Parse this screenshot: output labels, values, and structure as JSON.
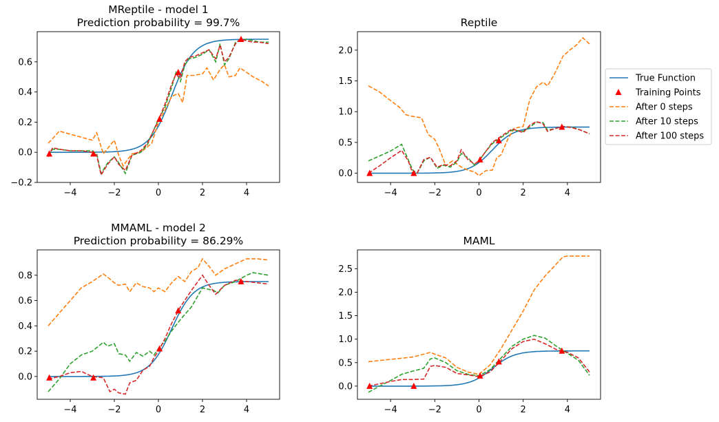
{
  "colors": {
    "true_function": "#1f77b4",
    "training_points": "#ff0000",
    "after_0": "#ff7f0e",
    "after_10": "#2ca02c",
    "after_100": "#d62728"
  },
  "legend": {
    "entries": [
      "True Function",
      "Training Points",
      "After 0 steps",
      "After 10 steps",
      "After 100 steps"
    ],
    "placement": "right of top-right subplot"
  },
  "chart_data": [
    {
      "type": "line",
      "title": "MReptile - model 1\nPrediction probability = 99.7%",
      "xlabel": "",
      "ylabel": "",
      "xlim": [
        -5.5,
        5.5
      ],
      "ylim": [
        -0.2,
        0.8
      ],
      "xticks": [
        -4,
        -2,
        0,
        2,
        4
      ],
      "xtick_labels": [
        "−4",
        "−2",
        "0",
        "2",
        "4"
      ],
      "yticks": [
        -0.2,
        0.0,
        0.2,
        0.4,
        0.6
      ],
      "ytick_labels": [
        "−0.2",
        "0.0",
        "0.2",
        "0.4",
        "0.6"
      ],
      "true_function": {
        "amplitude": 0.75,
        "steepness": 2.0,
        "center": 0.6
      },
      "training_points": {
        "x": [
          -4.95,
          -2.95,
          0.05,
          0.9,
          3.75
        ],
        "y": [
          -0.01,
          -0.01,
          0.22,
          0.53,
          0.75
        ]
      },
      "series": [
        {
          "name": "After 0 steps",
          "x": [
            -5,
            -4.8,
            -4.5,
            -4,
            -3.5,
            -3,
            -2.8,
            -2.5,
            -2,
            -1.8,
            -1.6,
            -1.2,
            -0.8,
            -0.3,
            0,
            0.3,
            0.6,
            0.9,
            1.1,
            1.3,
            1.6,
            2,
            2.2,
            2.5,
            2.8,
            3,
            3.2,
            3.5,
            3.7,
            4,
            4.3,
            4.7,
            5
          ],
          "y": [
            0.06,
            0.09,
            0.14,
            0.12,
            0.1,
            0.08,
            0.13,
            -0.01,
            0.08,
            -0.02,
            -0.09,
            -0.01,
            0.0,
            0.06,
            0.2,
            0.28,
            0.37,
            0.39,
            0.33,
            0.51,
            0.51,
            0.52,
            0.56,
            0.48,
            0.55,
            0.58,
            0.5,
            0.51,
            0.56,
            0.53,
            0.5,
            0.47,
            0.44
          ]
        },
        {
          "name": "After 10 steps",
          "x": [
            -5,
            -4.8,
            -4.5,
            -4,
            -3.5,
            -3,
            -2.8,
            -2.6,
            -2.3,
            -2,
            -1.8,
            -1.5,
            -1.2,
            -0.8,
            -0.5,
            0,
            0.3,
            0.6,
            0.8,
            1,
            1.2,
            1.4,
            1.7,
            2,
            2.3,
            2.6,
            2.8,
            3,
            3.2,
            3.5,
            3.7,
            4,
            4.3,
            4.6,
            5
          ],
          "y": [
            -0.02,
            0.02,
            0.02,
            0.01,
            0.01,
            0.01,
            -0.01,
            -0.14,
            -0.07,
            -0.03,
            -0.07,
            -0.14,
            -0.02,
            0.0,
            0.05,
            0.22,
            0.3,
            0.43,
            0.53,
            0.47,
            0.58,
            0.62,
            0.63,
            0.65,
            0.68,
            0.6,
            0.72,
            0.58,
            0.62,
            0.73,
            0.74,
            0.75,
            0.74,
            0.73,
            0.73
          ]
        },
        {
          "name": "After 100 steps",
          "x": [
            -5,
            -4.8,
            -4.5,
            -4,
            -3.5,
            -3,
            -2.8,
            -2.6,
            -2.3,
            -2,
            -1.8,
            -1.5,
            -1.2,
            -0.8,
            -0.5,
            0,
            0.3,
            0.6,
            0.8,
            1,
            1.2,
            1.4,
            1.7,
            2,
            2.3,
            2.6,
            2.8,
            3,
            3.2,
            3.5,
            3.7,
            4,
            4.3,
            4.6,
            5
          ],
          "y": [
            -0.03,
            0.03,
            0.02,
            0.01,
            0.01,
            0.0,
            -0.02,
            -0.15,
            -0.08,
            -0.03,
            -0.08,
            -0.12,
            -0.02,
            0.01,
            0.06,
            0.21,
            0.32,
            0.45,
            0.52,
            0.49,
            0.6,
            0.63,
            0.64,
            0.66,
            0.68,
            0.62,
            0.71,
            0.6,
            0.63,
            0.72,
            0.75,
            0.74,
            0.73,
            0.73,
            0.72
          ]
        }
      ]
    },
    {
      "type": "line",
      "title": "Reptile",
      "xlabel": "",
      "ylabel": "",
      "xlim": [
        -5.5,
        5.5
      ],
      "ylim": [
        -0.15,
        2.3
      ],
      "xticks": [
        -4,
        -2,
        0,
        2,
        4
      ],
      "xtick_labels": [
        "−4",
        "−2",
        "0",
        "2",
        "4"
      ],
      "yticks": [
        0,
        0.5,
        1.0,
        1.5,
        2.0
      ],
      "ytick_labels": [
        "0.0",
        "0.5",
        "1.0",
        "1.5",
        "2.0"
      ],
      "true_function": {
        "amplitude": 0.75,
        "steepness": 2.0,
        "center": 0.6
      },
      "training_points": {
        "x": [
          -4.95,
          -2.95,
          0.05,
          0.9,
          3.75
        ],
        "y": [
          0.0,
          0.0,
          0.22,
          0.53,
          0.75
        ]
      },
      "series": [
        {
          "name": "After 0 steps",
          "x": [
            -5,
            -4.5,
            -4,
            -3.6,
            -3.3,
            -3.1,
            -2.6,
            -2.3,
            -2,
            -1.8,
            -1.5,
            -1.2,
            -0.8,
            -0.5,
            -0.2,
            0,
            0.3,
            0.6,
            0.8,
            1,
            1.3,
            1.6,
            2,
            2.3,
            2.6,
            2.9,
            3.1,
            3.4,
            3.8,
            4.1,
            4.4,
            4.7,
            5
          ],
          "y": [
            1.42,
            1.32,
            1.18,
            1.07,
            0.95,
            0.93,
            0.9,
            0.63,
            0.55,
            0.4,
            0.12,
            0.2,
            0.1,
            0.05,
            0.02,
            -0.04,
            0.04,
            0.05,
            0.25,
            0.3,
            0.55,
            0.73,
            0.76,
            1.2,
            1.4,
            1.48,
            1.42,
            1.6,
            1.9,
            2.0,
            2.08,
            2.2,
            2.1
          ]
        },
        {
          "name": "After 10 steps",
          "x": [
            -5,
            -4.5,
            -4,
            -3.5,
            -3,
            -2.8,
            -2.5,
            -2.2,
            -1.9,
            -1.6,
            -1.3,
            -1,
            -0.8,
            -0.5,
            -0.2,
            0,
            0.3,
            0.6,
            1,
            1.5,
            2,
            2.3,
            2.6,
            2.9,
            3.1,
            3.4,
            3.8,
            4.2,
            4.6,
            5
          ],
          "y": [
            0.2,
            0.28,
            0.36,
            0.47,
            0.05,
            0.0,
            0.2,
            0.26,
            0.08,
            0.13,
            0.1,
            0.18,
            0.32,
            0.25,
            0.13,
            0.2,
            0.35,
            0.48,
            0.58,
            0.7,
            0.68,
            0.75,
            0.83,
            0.82,
            0.7,
            0.72,
            0.76,
            0.75,
            0.7,
            0.64
          ]
        },
        {
          "name": "After 100 steps",
          "x": [
            -5,
            -4.5,
            -4,
            -3.5,
            -3.2,
            -3,
            -2.8,
            -2.5,
            -2.2,
            -1.9,
            -1.6,
            -1.3,
            -1,
            -0.8,
            -0.5,
            -0.2,
            0,
            0.3,
            0.6,
            1,
            1.5,
            2,
            2.3,
            2.6,
            2.9,
            3.1,
            3.4,
            3.8,
            4.2,
            4.6,
            5
          ],
          "y": [
            0.0,
            0.12,
            0.25,
            0.37,
            0.2,
            0.0,
            0.0,
            0.22,
            0.26,
            0.1,
            0.14,
            0.12,
            0.2,
            0.38,
            0.22,
            0.15,
            0.2,
            0.35,
            0.5,
            0.6,
            0.72,
            0.66,
            0.78,
            0.84,
            0.8,
            0.68,
            0.72,
            0.76,
            0.74,
            0.7,
            0.64
          ]
        }
      ]
    },
    {
      "type": "line",
      "title": "MMAML - model 2\nPrediction probability = 86.29%",
      "xlabel": "",
      "ylabel": "",
      "xlim": [
        -5.5,
        5.5
      ],
      "ylim": [
        -0.18,
        1.0
      ],
      "xticks": [
        -4,
        -2,
        0,
        2,
        4
      ],
      "xtick_labels": [
        "−4",
        "−2",
        "0",
        "2",
        "4"
      ],
      "yticks": [
        0,
        0.2,
        0.4,
        0.6,
        0.8
      ],
      "ytick_labels": [
        "0.0",
        "0.2",
        "0.4",
        "0.6",
        "0.8"
      ],
      "true_function": {
        "amplitude": 0.75,
        "steepness": 2.0,
        "center": 0.6
      },
      "training_points": {
        "x": [
          -4.95,
          -2.95,
          0.05,
          0.9,
          3.75
        ],
        "y": [
          -0.01,
          -0.01,
          0.22,
          0.52,
          0.75
        ]
      },
      "series": [
        {
          "name": "After 0 steps",
          "x": [
            -5,
            -4.5,
            -4,
            -3.5,
            -3,
            -2.5,
            -2.2,
            -2,
            -1.8,
            -1.5,
            -1.3,
            -1,
            -0.7,
            -0.4,
            -0.2,
            0,
            0.3,
            0.6,
            0.9,
            1.2,
            1.5,
            1.8,
            2,
            2.3,
            2.6,
            3,
            3.5,
            4,
            4.5,
            5
          ],
          "y": [
            0.4,
            0.5,
            0.6,
            0.7,
            0.75,
            0.81,
            0.77,
            0.74,
            0.72,
            0.73,
            0.67,
            0.74,
            0.71,
            0.7,
            0.67,
            0.7,
            0.67,
            0.74,
            0.79,
            0.75,
            0.83,
            0.86,
            0.93,
            0.87,
            0.8,
            0.85,
            0.89,
            0.93,
            0.93,
            0.92
          ]
        },
        {
          "name": "After 10 steps",
          "x": [
            -5,
            -4.5,
            -4,
            -3.5,
            -3,
            -2.5,
            -2.3,
            -2,
            -1.8,
            -1.5,
            -1.3,
            -1,
            -0.7,
            -0.4,
            -0.2,
            0,
            0.3,
            0.6,
            1,
            1.5,
            2,
            2.5,
            2.7,
            3,
            3.5,
            4,
            4.3,
            5
          ],
          "y": [
            -0.12,
            -0.02,
            0.1,
            0.17,
            0.2,
            0.27,
            0.24,
            0.26,
            0.18,
            0.17,
            0.12,
            0.19,
            0.16,
            0.2,
            0.17,
            0.22,
            0.28,
            0.36,
            0.45,
            0.55,
            0.7,
            0.68,
            0.66,
            0.72,
            0.75,
            0.8,
            0.82,
            0.8
          ]
        },
        {
          "name": "After 100 steps",
          "x": [
            -5,
            -4.5,
            -4,
            -3.5,
            -3,
            -2.5,
            -2.2,
            -2,
            -1.8,
            -1.5,
            -1.3,
            -1,
            -0.7,
            -0.4,
            -0.2,
            0,
            0.3,
            0.6,
            1,
            1.5,
            2,
            2.3,
            2.6,
            3,
            3.5,
            4,
            4.5,
            5
          ],
          "y": [
            -0.02,
            0.0,
            0.03,
            0.04,
            0.0,
            -0.01,
            -0.12,
            -0.1,
            -0.13,
            -0.14,
            -0.05,
            -0.03,
            0.05,
            0.08,
            0.15,
            0.2,
            0.3,
            0.42,
            0.55,
            0.68,
            0.8,
            0.72,
            0.65,
            0.72,
            0.76,
            0.75,
            0.74,
            0.73
          ]
        }
      ]
    },
    {
      "type": "line",
      "title": "MAML",
      "xlabel": "",
      "ylabel": "",
      "xlim": [
        -5.5,
        5.5
      ],
      "ylim": [
        -0.28,
        2.9
      ],
      "xticks": [
        -4,
        -2,
        0,
        2,
        4
      ],
      "xtick_labels": [
        "−4",
        "−2",
        "0",
        "2",
        "4"
      ],
      "yticks": [
        0,
        0.5,
        1.0,
        1.5,
        2.0,
        2.5
      ],
      "ytick_labels": [
        "0.0",
        "0.5",
        "1.0",
        "1.5",
        "2.0",
        "2.5"
      ],
      "true_function": {
        "amplitude": 0.75,
        "steepness": 2.0,
        "center": 0.6
      },
      "training_points": {
        "x": [
          -4.95,
          -2.95,
          0.05,
          0.9,
          3.75
        ],
        "y": [
          0.0,
          0.0,
          0.22,
          0.52,
          0.75
        ]
      },
      "series": [
        {
          "name": "After 0 steps",
          "x": [
            -5,
            -4,
            -3,
            -2.5,
            -2.2,
            -2,
            -1.5,
            -1,
            -0.5,
            0,
            0.5,
            1,
            1.5,
            2,
            2.5,
            3,
            3.5,
            3.8,
            4,
            4.5,
            5
          ],
          "y": [
            0.52,
            0.57,
            0.62,
            0.68,
            0.72,
            0.68,
            0.6,
            0.4,
            0.3,
            0.25,
            0.45,
            0.8,
            1.2,
            1.6,
            2.05,
            2.35,
            2.6,
            2.75,
            2.77,
            2.77,
            2.77
          ]
        },
        {
          "name": "After 10 steps",
          "x": [
            -5,
            -4.5,
            -4,
            -3.5,
            -3,
            -2.5,
            -2.2,
            -2,
            -1.5,
            -1,
            -0.5,
            0,
            0.5,
            1,
            1.5,
            2,
            2.5,
            3,
            3.5,
            4,
            4.5,
            5
          ],
          "y": [
            -0.13,
            0.0,
            0.12,
            0.25,
            0.32,
            0.38,
            0.58,
            0.6,
            0.5,
            0.33,
            0.25,
            0.22,
            0.35,
            0.6,
            0.85,
            1.0,
            1.08,
            1.02,
            0.85,
            0.7,
            0.55,
            0.23
          ]
        },
        {
          "name": "After 100 steps",
          "x": [
            -5,
            -4.5,
            -4,
            -3.5,
            -3,
            -2.5,
            -2.2,
            -2,
            -1.5,
            -1,
            -0.5,
            0,
            0.5,
            1,
            1.5,
            2,
            2.5,
            3,
            3.5,
            4,
            4.5,
            5
          ],
          "y": [
            0.0,
            0.05,
            0.1,
            0.14,
            0.14,
            0.15,
            0.42,
            0.44,
            0.4,
            0.27,
            0.24,
            0.2,
            0.3,
            0.55,
            0.8,
            0.95,
            1.0,
            0.9,
            0.78,
            0.72,
            0.6,
            0.3
          ]
        }
      ]
    }
  ]
}
